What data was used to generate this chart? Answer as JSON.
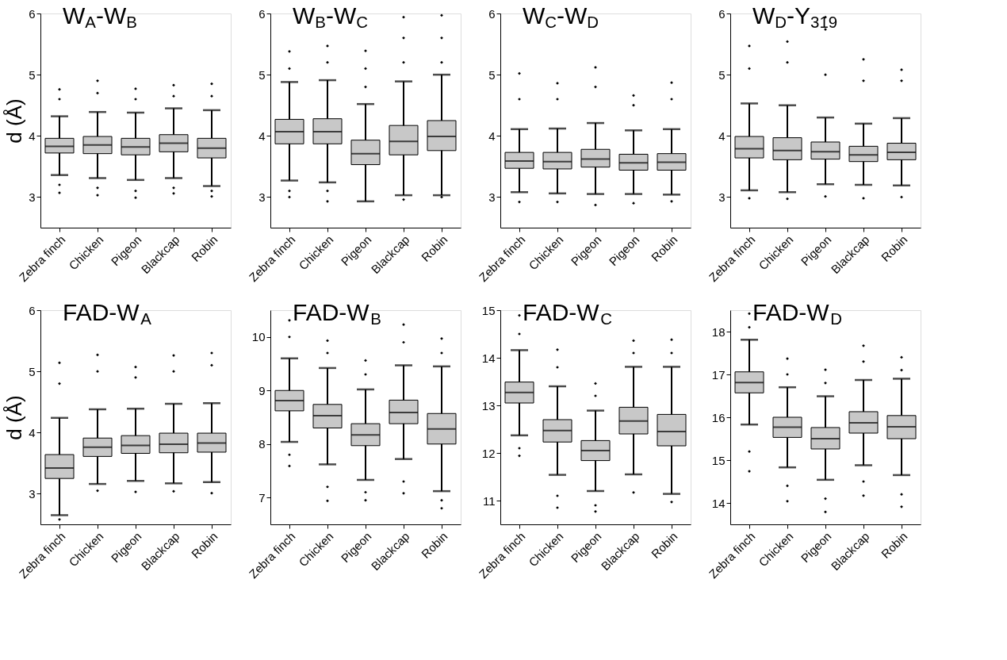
{
  "chart_data": [
    {
      "type": "box",
      "title": "W$_{A}$-W$_{B}$",
      "ylabel": "d (Å)",
      "color": "#c8c8c8",
      "categories": [
        "Zebra finch",
        "Chicken",
        "Pigeon",
        "Blackcap",
        "Robin"
      ],
      "ylim": [
        2.5,
        6
      ],
      "yticks": [
        3,
        4,
        5,
        6
      ],
      "boxes": [
        {
          "low": 3.36,
          "q1": 3.72,
          "median": 3.83,
          "q3": 3.96,
          "high": 4.32,
          "outliers": [
            4.76,
            4.6,
            3.2,
            3.07
          ]
        },
        {
          "low": 3.31,
          "q1": 3.71,
          "median": 3.85,
          "q3": 3.99,
          "high": 4.39,
          "outliers": [
            4.9,
            4.7,
            3.15,
            3.03
          ]
        },
        {
          "low": 3.28,
          "q1": 3.69,
          "median": 3.82,
          "q3": 3.96,
          "high": 4.38,
          "outliers": [
            4.77,
            4.6,
            3.1,
            2.99
          ]
        },
        {
          "low": 3.31,
          "q1": 3.74,
          "median": 3.88,
          "q3": 4.02,
          "high": 4.45,
          "outliers": [
            4.83,
            4.65,
            3.15,
            3.06
          ]
        },
        {
          "low": 3.18,
          "q1": 3.64,
          "median": 3.8,
          "q3": 3.96,
          "high": 4.42,
          "outliers": [
            4.85,
            4.65,
            3.1,
            3.01
          ]
        }
      ]
    },
    {
      "type": "box",
      "title": "W$_{B}$-W$_{C}$",
      "color": "#c8c8c8",
      "categories": [
        "Zebra finch",
        "Chicken",
        "Pigeon",
        "Blackcap",
        "Robin"
      ],
      "ylim": [
        2.5,
        6
      ],
      "yticks": [
        3,
        4,
        5,
        6
      ],
      "boxes": [
        {
          "low": 3.27,
          "q1": 3.87,
          "median": 4.07,
          "q3": 4.27,
          "high": 4.88,
          "outliers": [
            5.38,
            5.1,
            3.1,
            3.0
          ]
        },
        {
          "low": 3.24,
          "q1": 3.87,
          "median": 4.07,
          "q3": 4.28,
          "high": 4.91,
          "outliers": [
            5.47,
            5.2,
            3.1,
            2.93
          ]
        },
        {
          "low": 2.93,
          "q1": 3.53,
          "median": 3.71,
          "q3": 3.93,
          "high": 4.52,
          "outliers": [
            5.39,
            5.1,
            4.8
          ]
        },
        {
          "low": 3.03,
          "q1": 3.69,
          "median": 3.91,
          "q3": 4.17,
          "high": 4.89,
          "outliers": [
            5.94,
            5.6,
            5.2,
            2.96
          ]
        },
        {
          "low": 3.03,
          "q1": 3.76,
          "median": 3.99,
          "q3": 4.25,
          "high": 5.0,
          "outliers": [
            5.97,
            5.6,
            5.2,
            3.0
          ]
        }
      ]
    },
    {
      "type": "box",
      "title": "W$_{C}$-W$_{D}$",
      "color": "#c8c8c8",
      "categories": [
        "Zebra finch",
        "Chicken",
        "Pigeon",
        "Pigeon",
        "Robin"
      ],
      "ylim": [
        2.5,
        6
      ],
      "yticks": [
        3,
        4,
        5,
        6
      ],
      "boxes": [
        {
          "low": 3.08,
          "q1": 3.47,
          "median": 3.59,
          "q3": 3.73,
          "high": 4.11,
          "outliers": [
            5.02,
            4.6,
            2.92
          ]
        },
        {
          "low": 3.06,
          "q1": 3.46,
          "median": 3.58,
          "q3": 3.73,
          "high": 4.12,
          "outliers": [
            4.86,
            4.6,
            2.92
          ]
        },
        {
          "low": 3.05,
          "q1": 3.49,
          "median": 3.62,
          "q3": 3.78,
          "high": 4.21,
          "outliers": [
            5.12,
            4.8,
            2.87
          ]
        },
        {
          "low": 3.05,
          "q1": 3.44,
          "median": 3.56,
          "q3": 3.7,
          "high": 4.09,
          "outliers": [
            4.66,
            4.5,
            2.9
          ]
        },
        {
          "low": 3.04,
          "q1": 3.44,
          "median": 3.57,
          "q3": 3.71,
          "high": 4.11,
          "outliers": [
            4.87,
            4.6,
            2.93
          ]
        }
      ]
    },
    {
      "type": "box",
      "title": "W$_{D}$-Y$_{319}$",
      "color": "#c8c8c8",
      "categories": [
        "Zebra finch",
        "Chicken",
        "Pigeon",
        "Blackcap",
        "Robin"
      ],
      "ylim": [
        2.5,
        6
      ],
      "yticks": [
        3,
        4,
        5,
        6
      ],
      "boxes": [
        {
          "low": 3.11,
          "q1": 3.64,
          "median": 3.79,
          "q3": 3.99,
          "high": 4.53,
          "outliers": [
            5.47,
            5.1,
            2.98
          ]
        },
        {
          "low": 3.08,
          "q1": 3.61,
          "median": 3.76,
          "q3": 3.97,
          "high": 4.5,
          "outliers": [
            5.54,
            5.2,
            2.97
          ]
        },
        {
          "low": 3.21,
          "q1": 3.62,
          "median": 3.74,
          "q3": 3.9,
          "high": 4.3,
          "outliers": [
            5.94,
            5.74,
            5.0,
            3.01
          ]
        },
        {
          "low": 3.2,
          "q1": 3.58,
          "median": 3.69,
          "q3": 3.83,
          "high": 4.2,
          "outliers": [
            5.25,
            4.9,
            2.98
          ]
        },
        {
          "low": 3.19,
          "q1": 3.61,
          "median": 3.73,
          "q3": 3.88,
          "high": 4.29,
          "outliers": [
            5.08,
            4.9,
            3.0
          ]
        }
      ]
    },
    {
      "type": "box",
      "title": "FAD-W$_{A}$",
      "ylabel": "d (Å)",
      "color": "#c8c8c8",
      "categories": [
        "Zebra finch",
        "Chicken",
        "Pigeon",
        "Blackcap",
        "Robin"
      ],
      "ylim": [
        2.5,
        6
      ],
      "yticks": [
        3,
        4,
        5,
        6
      ],
      "boxes": [
        {
          "low": 2.65,
          "q1": 3.25,
          "median": 3.42,
          "q3": 3.64,
          "high": 4.24,
          "outliers": [
            5.14,
            4.8,
            2.58
          ]
        },
        {
          "low": 3.16,
          "q1": 3.61,
          "median": 3.76,
          "q3": 3.91,
          "high": 4.38,
          "outliers": [
            5.27,
            5.0,
            3.05
          ]
        },
        {
          "low": 3.21,
          "q1": 3.66,
          "median": 3.79,
          "q3": 3.95,
          "high": 4.39,
          "outliers": [
            5.07,
            4.9,
            3.03
          ]
        },
        {
          "low": 3.17,
          "q1": 3.67,
          "median": 3.81,
          "q3": 3.99,
          "high": 4.47,
          "outliers": [
            5.26,
            5.0,
            3.04
          ]
        },
        {
          "low": 3.19,
          "q1": 3.68,
          "median": 3.83,
          "q3": 3.99,
          "high": 4.48,
          "outliers": [
            5.3,
            5.1,
            3.01
          ]
        }
      ]
    },
    {
      "type": "box",
      "title": "FAD-W$_{B}$",
      "color": "#c8c8c8",
      "categories": [
        "Zebra finch",
        "Chicken",
        "Pigeon",
        "Blackcap",
        "Robin"
      ],
      "ylim": [
        6.5,
        10.5
      ],
      "yticks": [
        7,
        8,
        9,
        10
      ],
      "boxes": [
        {
          "low": 8.04,
          "q1": 8.62,
          "median": 8.81,
          "q3": 9.0,
          "high": 9.6,
          "outliers": [
            10.31,
            10.0,
            7.8,
            7.59
          ]
        },
        {
          "low": 7.62,
          "q1": 8.3,
          "median": 8.53,
          "q3": 8.74,
          "high": 9.42,
          "outliers": [
            9.93,
            9.7,
            7.2,
            6.94
          ]
        },
        {
          "low": 7.33,
          "q1": 7.97,
          "median": 8.17,
          "q3": 8.38,
          "high": 9.02,
          "outliers": [
            9.56,
            9.3,
            7.1,
            6.95
          ]
        },
        {
          "low": 7.72,
          "q1": 8.38,
          "median": 8.59,
          "q3": 8.82,
          "high": 9.47,
          "outliers": [
            10.23,
            9.9,
            7.3,
            7.08
          ]
        },
        {
          "low": 7.12,
          "q1": 8.0,
          "median": 8.28,
          "q3": 8.57,
          "high": 9.45,
          "outliers": [
            9.97,
            9.7,
            6.95,
            6.8
          ]
        }
      ]
    },
    {
      "type": "box",
      "title": "FAD-W$_{C}$",
      "color": "#c8c8c8",
      "categories": [
        "Zebra finch",
        "Chicken",
        "Pigeon",
        "Blackcap",
        "Robin"
      ],
      "ylim": [
        10.5,
        15
      ],
      "yticks": [
        11,
        12,
        13,
        14,
        15
      ],
      "boxes": [
        {
          "low": 12.37,
          "q1": 13.05,
          "median": 13.27,
          "q3": 13.49,
          "high": 14.16,
          "outliers": [
            14.89,
            14.5,
            12.1,
            11.94
          ]
        },
        {
          "low": 11.54,
          "q1": 12.23,
          "median": 12.47,
          "q3": 12.7,
          "high": 13.4,
          "outliers": [
            14.17,
            13.8,
            11.1,
            10.85
          ]
        },
        {
          "low": 11.2,
          "q1": 11.84,
          "median": 12.05,
          "q3": 12.26,
          "high": 12.89,
          "outliers": [
            13.46,
            13.2,
            10.9,
            10.77
          ]
        },
        {
          "low": 11.55,
          "q1": 12.4,
          "median": 12.67,
          "q3": 12.96,
          "high": 13.81,
          "outliers": [
            14.36,
            14.1,
            11.17
          ]
        },
        {
          "low": 11.14,
          "q1": 12.15,
          "median": 12.45,
          "q3": 12.81,
          "high": 13.81,
          "outliers": [
            14.38,
            14.1,
            10.97
          ]
        }
      ]
    },
    {
      "type": "box",
      "title": "FAD-W$_{D}$",
      "color": "#c8c8c8",
      "categories": [
        "Zebra finch",
        "Chicken",
        "Pigeon",
        "Blackcap",
        "Robin"
      ],
      "ylim": [
        13.5,
        18.5
      ],
      "yticks": [
        14,
        15,
        16,
        17,
        18
      ],
      "boxes": [
        {
          "low": 15.83,
          "q1": 16.57,
          "median": 16.81,
          "q3": 17.06,
          "high": 17.81,
          "outliers": [
            18.42,
            18.1,
            15.2,
            14.74
          ]
        },
        {
          "low": 14.83,
          "q1": 15.53,
          "median": 15.77,
          "q3": 16.0,
          "high": 16.7,
          "outliers": [
            17.37,
            17.0,
            14.4,
            14.04
          ]
        },
        {
          "low": 14.54,
          "q1": 15.26,
          "median": 15.5,
          "q3": 15.76,
          "high": 16.49,
          "outliers": [
            17.11,
            16.8,
            14.1,
            13.79
          ]
        },
        {
          "low": 14.88,
          "q1": 15.63,
          "median": 15.87,
          "q3": 16.13,
          "high": 16.87,
          "outliers": [
            17.67,
            17.3,
            14.5,
            14.17
          ]
        },
        {
          "low": 14.65,
          "q1": 15.5,
          "median": 15.78,
          "q3": 16.04,
          "high": 16.9,
          "outliers": [
            17.4,
            17.1,
            14.2,
            13.91
          ]
        }
      ]
    }
  ]
}
